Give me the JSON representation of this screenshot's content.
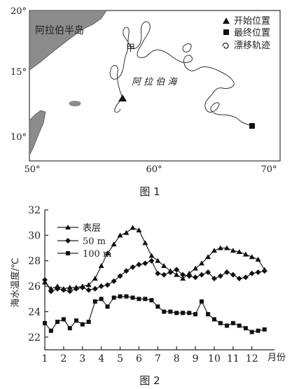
{
  "figure1": {
    "caption": "图 1",
    "lat_labels": [
      "20°",
      "15°",
      "10°"
    ],
    "lon_labels": [
      "50°",
      "60°",
      "70°"
    ],
    "peninsula_label": "阿拉伯半岛",
    "sea_label": "阿 拉 伯 海",
    "marker_label": "甲",
    "legend": {
      "start": "开始位置",
      "end": "最终位置",
      "track": "漂移轨迹"
    }
  },
  "figure2": {
    "caption": "图 2",
    "ylabel": "海水温度/℃",
    "xunit": "月份"
  },
  "chart_data": {
    "type": "line",
    "title": "",
    "xlabel": "月份",
    "ylabel": "海水温度/℃",
    "ylim": [
      21,
      32
    ],
    "xlim": [
      1,
      13.2
    ],
    "xticks": [
      1,
      2,
      3,
      4,
      5,
      6,
      7,
      8,
      9,
      10,
      11,
      12
    ],
    "yticks": [
      22,
      24,
      26,
      28,
      30,
      32
    ],
    "grid": false,
    "legend_position": "top-left",
    "series": [
      {
        "name": "表层",
        "marker": "triangle",
        "x": [
          1.0,
          1.33,
          1.67,
          2.0,
          2.33,
          2.67,
          3.0,
          3.33,
          3.67,
          4.0,
          4.33,
          4.67,
          5.0,
          5.33,
          5.67,
          6.0,
          6.33,
          6.67,
          7.0,
          7.33,
          7.67,
          8.0,
          8.33,
          8.67,
          9.0,
          9.33,
          9.67,
          10.0,
          10.33,
          10.67,
          11.0,
          11.33,
          11.67,
          12.0,
          12.33,
          12.67
        ],
        "values": [
          26.3,
          25.8,
          26.0,
          25.8,
          25.9,
          25.9,
          26.0,
          26.1,
          26.6,
          27.6,
          28.6,
          29.3,
          30.0,
          30.2,
          30.6,
          30.4,
          29.4,
          28.4,
          28.0,
          27.6,
          27.2,
          26.9,
          26.6,
          27.0,
          27.4,
          27.8,
          28.3,
          28.8,
          29.0,
          29.0,
          28.8,
          28.7,
          28.5,
          28.3,
          28.1,
          27.3
        ]
      },
      {
        "name": "50 m",
        "marker": "diamond",
        "x": [
          1.0,
          1.33,
          1.67,
          2.0,
          2.33,
          2.67,
          3.0,
          3.33,
          3.67,
          4.0,
          4.33,
          4.67,
          5.0,
          5.33,
          5.67,
          6.0,
          6.33,
          6.67,
          7.0,
          7.33,
          7.67,
          8.0,
          8.33,
          8.67,
          9.0,
          9.33,
          9.67,
          10.0,
          10.33,
          10.67,
          11.0,
          11.33,
          11.67,
          12.0,
          12.33,
          12.67
        ],
        "values": [
          26.5,
          25.6,
          25.8,
          25.7,
          25.6,
          25.8,
          25.9,
          25.7,
          25.8,
          26.0,
          26.1,
          26.4,
          26.8,
          27.2,
          27.5,
          27.7,
          27.8,
          28.0,
          27.0,
          26.9,
          27.1,
          27.3,
          26.9,
          26.8,
          26.7,
          26.9,
          27.1,
          26.6,
          26.8,
          27.1,
          26.9,
          26.6,
          26.7,
          27.0,
          27.1,
          27.2
        ]
      },
      {
        "name": "100 m",
        "marker": "square",
        "x": [
          1.0,
          1.33,
          1.67,
          2.0,
          2.33,
          2.67,
          3.0,
          3.33,
          3.67,
          4.0,
          4.33,
          4.67,
          5.0,
          5.33,
          5.67,
          6.0,
          6.33,
          6.67,
          7.0,
          7.33,
          7.67,
          8.0,
          8.33,
          8.67,
          9.0,
          9.33,
          9.67,
          10.0,
          10.33,
          10.67,
          11.0,
          11.33,
          11.67,
          12.0,
          12.33,
          12.67
        ],
        "values": [
          23.1,
          22.5,
          23.2,
          23.4,
          22.7,
          23.3,
          23.0,
          23.2,
          24.8,
          25.0,
          24.4,
          25.1,
          25.2,
          25.2,
          25.1,
          25.0,
          25.0,
          24.9,
          24.4,
          24.0,
          24.0,
          23.9,
          23.9,
          23.9,
          23.8,
          24.8,
          23.8,
          23.4,
          23.1,
          22.9,
          23.1,
          22.9,
          22.7,
          22.4,
          22.5,
          22.6
        ]
      }
    ]
  }
}
